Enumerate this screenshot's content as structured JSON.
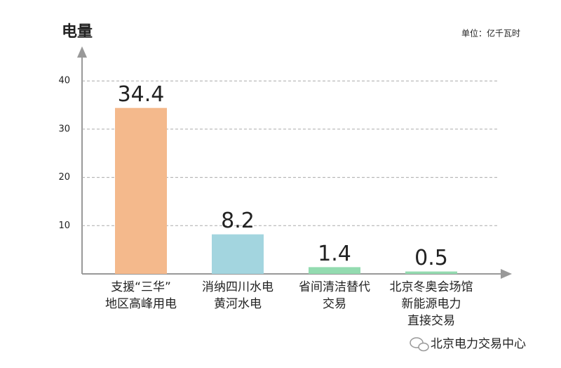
{
  "chart_data": {
    "type": "bar",
    "y_axis_label": "电量",
    "unit": "单位：亿千瓦时",
    "categories": [
      [
        "支援“三华”",
        "地区高峰用电"
      ],
      [
        "消纳四川水电",
        "黄河水电"
      ],
      [
        "省间清洁替代",
        "交易"
      ],
      [
        "北京冬奥会场馆",
        "新能源电力",
        "直接交易"
      ]
    ],
    "values": [
      34.4,
      8.2,
      1.4,
      0.5
    ],
    "colors": [
      "#f4b98c",
      "#a3d5df",
      "#93dbb0",
      "#93dbb0"
    ],
    "value_label_color": "#c9585c",
    "ylim": [
      0,
      46
    ],
    "yticks": [
      10,
      20,
      30,
      40
    ],
    "grid": true,
    "watermark": "北京电力交易中心"
  }
}
